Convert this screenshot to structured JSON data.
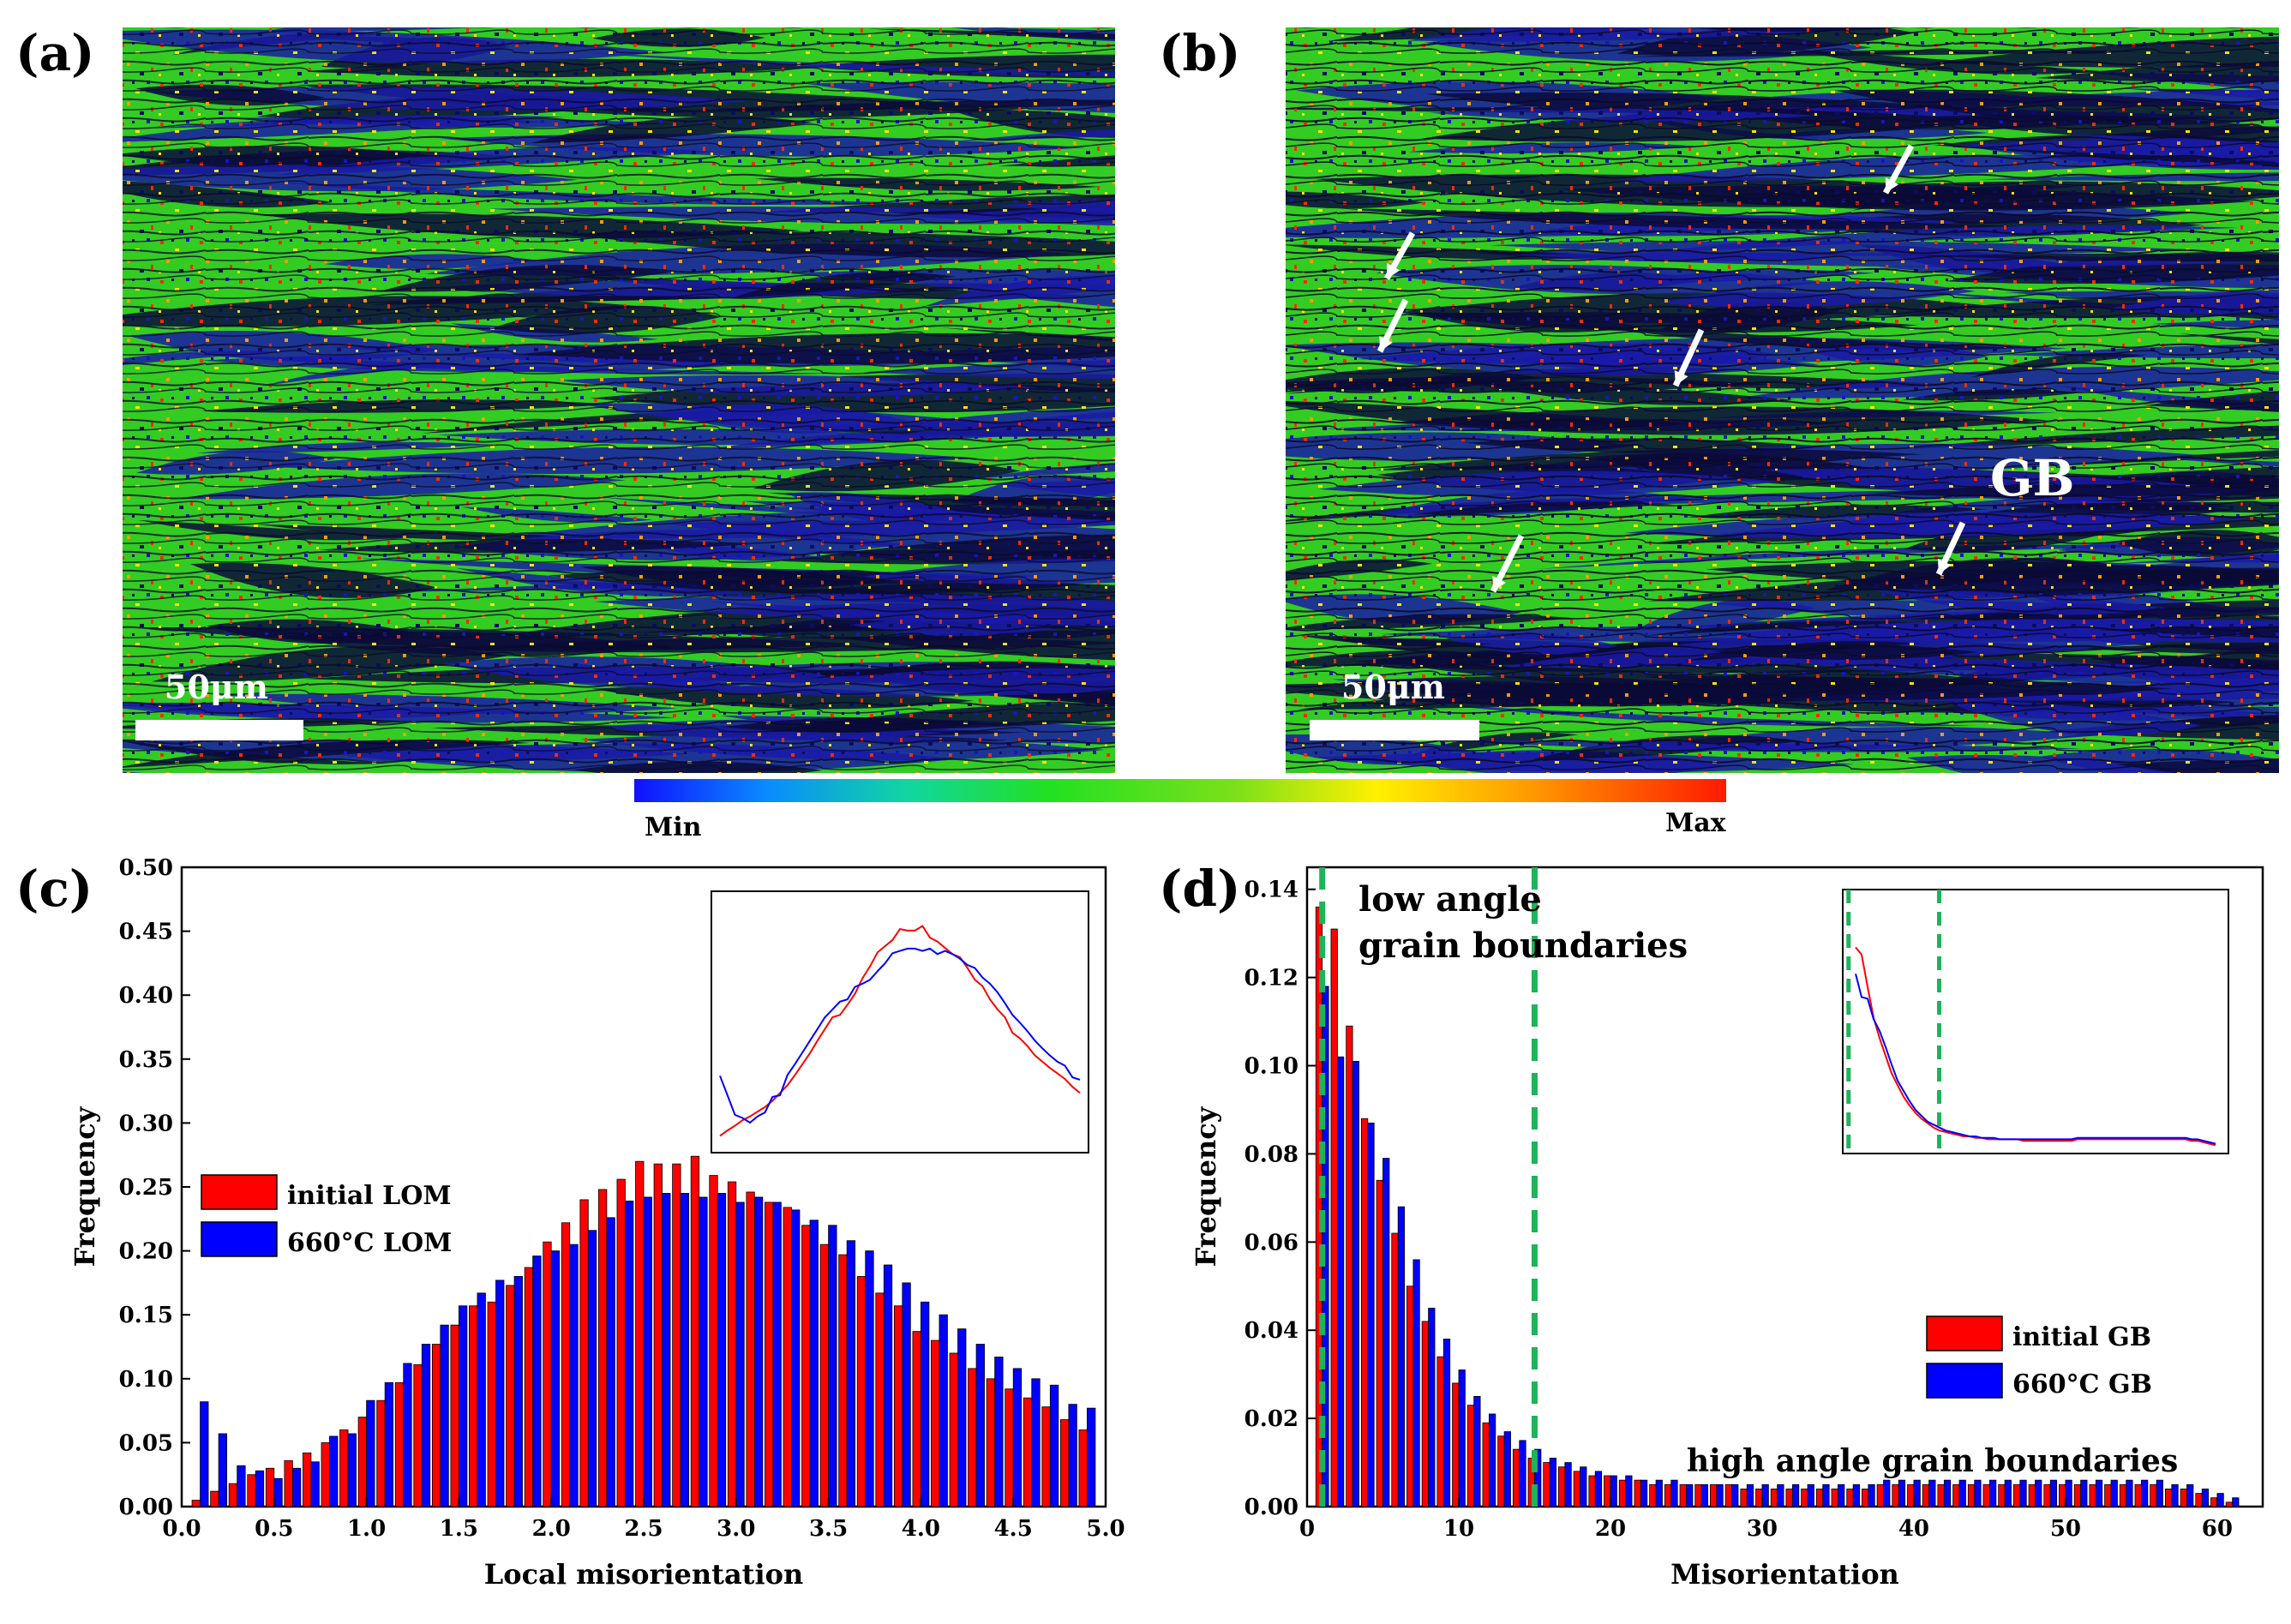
{
  "colors": {
    "map_green": "#33cc22",
    "map_blue": "#1a1aa6",
    "map_dark": "#0b0b3a",
    "initial": "#ff0000",
    "heated": "#0000ff",
    "dashed_green": "#1fb35a"
  },
  "panels": {
    "a": {
      "label": "(a)",
      "scale_bar": "50μm"
    },
    "b": {
      "label": "(b)",
      "scale_bar": "50μm",
      "gb_label": "GB"
    },
    "c": {
      "label": "(c)"
    },
    "d": {
      "label": "(d)"
    }
  },
  "colorbar": {
    "min_label": "Min",
    "max_label": "Max"
  },
  "chart_data": [
    {
      "id": "c",
      "type": "bar",
      "xlabel": "Local misorientation",
      "ylabel": "Frequency",
      "xlim": [
        0.0,
        5.0
      ],
      "ylim": [
        0.0,
        0.5
      ],
      "xticks": [
        "0.0",
        "0.5",
        "1.0",
        "1.5",
        "2.0",
        "2.5",
        "3.0",
        "3.5",
        "4.0",
        "4.5",
        "5.0"
      ],
      "yticks": [
        "0.00",
        "0.05",
        "0.10",
        "0.15",
        "0.20",
        "0.25",
        "0.30",
        "0.35",
        "0.40",
        "0.45",
        "0.50"
      ],
      "x": [
        0.1,
        0.2,
        0.3,
        0.4,
        0.5,
        0.6,
        0.7,
        0.8,
        0.9,
        1.0,
        1.1,
        1.2,
        1.3,
        1.4,
        1.5,
        1.6,
        1.7,
        1.8,
        1.9,
        2.0,
        2.1,
        2.2,
        2.3,
        2.4,
        2.5,
        2.6,
        2.7,
        2.8,
        2.9,
        3.0,
        3.1,
        3.2,
        3.3,
        3.4,
        3.5,
        3.6,
        3.7,
        3.8,
        3.9,
        4.0,
        4.1,
        4.2,
        4.3,
        4.4,
        4.5,
        4.6,
        4.7,
        4.8,
        4.9
      ],
      "series": [
        {
          "name": "initial LOM",
          "values": [
            0.005,
            0.012,
            0.018,
            0.025,
            0.03,
            0.036,
            0.042,
            0.05,
            0.06,
            0.07,
            0.083,
            0.097,
            0.111,
            0.127,
            0.142,
            0.157,
            0.16,
            0.173,
            0.187,
            0.207,
            0.222,
            0.24,
            0.248,
            0.256,
            0.27,
            0.268,
            0.268,
            0.274,
            0.259,
            0.254,
            0.246,
            0.238,
            0.234,
            0.22,
            0.205,
            0.197,
            0.18,
            0.167,
            0.157,
            0.137,
            0.13,
            0.12,
            0.108,
            0.1,
            0.092,
            0.085,
            0.078,
            0.068,
            0.06
          ]
        },
        {
          "name": "660°C LOM",
          "values": [
            0.082,
            0.057,
            0.032,
            0.028,
            0.022,
            0.03,
            0.035,
            0.055,
            0.057,
            0.083,
            0.097,
            0.112,
            0.127,
            0.142,
            0.157,
            0.167,
            0.177,
            0.18,
            0.196,
            0.2,
            0.205,
            0.216,
            0.226,
            0.239,
            0.242,
            0.245,
            0.245,
            0.242,
            0.245,
            0.238,
            0.242,
            0.238,
            0.232,
            0.224,
            0.22,
            0.208,
            0.2,
            0.189,
            0.175,
            0.16,
            0.15,
            0.139,
            0.127,
            0.117,
            0.108,
            0.1,
            0.095,
            0.08,
            0.077
          ]
        }
      ],
      "legend": [
        "initial LOM",
        "660°C LOM"
      ],
      "inset": "smoothed distribution curves of both series"
    },
    {
      "id": "d",
      "type": "bar",
      "xlabel": "Misorientation",
      "ylabel": "Frequency",
      "xlim": [
        0,
        63
      ],
      "ylim": [
        0.0,
        0.145
      ],
      "xticks": [
        "0",
        "10",
        "20",
        "30",
        "40",
        "50",
        "60"
      ],
      "yticks": [
        "0.00",
        "0.02",
        "0.04",
        "0.06",
        "0.08",
        "0.10",
        "0.12",
        "0.14"
      ],
      "x": [
        1,
        2,
        3,
        4,
        5,
        6,
        7,
        8,
        9,
        10,
        11,
        12,
        13,
        14,
        15,
        16,
        17,
        18,
        19,
        20,
        21,
        22,
        23,
        24,
        25,
        26,
        27,
        28,
        29,
        30,
        31,
        32,
        33,
        34,
        35,
        36,
        37,
        38,
        39,
        40,
        41,
        42,
        43,
        44,
        45,
        46,
        47,
        48,
        49,
        50,
        51,
        52,
        53,
        54,
        55,
        56,
        57,
        58,
        59,
        60,
        61
      ],
      "series": [
        {
          "name": "initial GB",
          "values": [
            0.136,
            0.131,
            0.109,
            0.088,
            0.074,
            0.062,
            0.05,
            0.042,
            0.034,
            0.028,
            0.023,
            0.019,
            0.016,
            0.013,
            0.011,
            0.01,
            0.009,
            0.008,
            0.007,
            0.007,
            0.006,
            0.006,
            0.005,
            0.005,
            0.005,
            0.005,
            0.005,
            0.005,
            0.004,
            0.004,
            0.004,
            0.004,
            0.004,
            0.004,
            0.004,
            0.004,
            0.004,
            0.005,
            0.005,
            0.005,
            0.005,
            0.005,
            0.005,
            0.005,
            0.005,
            0.005,
            0.005,
            0.005,
            0.005,
            0.005,
            0.005,
            0.005,
            0.005,
            0.005,
            0.005,
            0.005,
            0.004,
            0.004,
            0.003,
            0.002,
            0.001
          ]
        },
        {
          "name": "660°C GB",
          "values": [
            0.118,
            0.102,
            0.101,
            0.087,
            0.079,
            0.068,
            0.056,
            0.045,
            0.038,
            0.031,
            0.025,
            0.021,
            0.017,
            0.015,
            0.013,
            0.011,
            0.01,
            0.009,
            0.008,
            0.007,
            0.007,
            0.006,
            0.006,
            0.006,
            0.005,
            0.005,
            0.005,
            0.005,
            0.005,
            0.005,
            0.005,
            0.005,
            0.005,
            0.005,
            0.005,
            0.005,
            0.005,
            0.006,
            0.006,
            0.006,
            0.006,
            0.006,
            0.006,
            0.006,
            0.006,
            0.006,
            0.006,
            0.006,
            0.006,
            0.006,
            0.006,
            0.006,
            0.006,
            0.006,
            0.006,
            0.006,
            0.005,
            0.005,
            0.004,
            0.003,
            0.002
          ]
        }
      ],
      "legend": [
        "initial GB",
        "660°C GB"
      ],
      "annotations": [
        "low angle",
        "grain boundaries",
        "high angle grain boundaries"
      ],
      "threshold_lines": [
        1,
        15
      ],
      "inset": "smoothed distribution curves of both series with threshold lines"
    }
  ]
}
